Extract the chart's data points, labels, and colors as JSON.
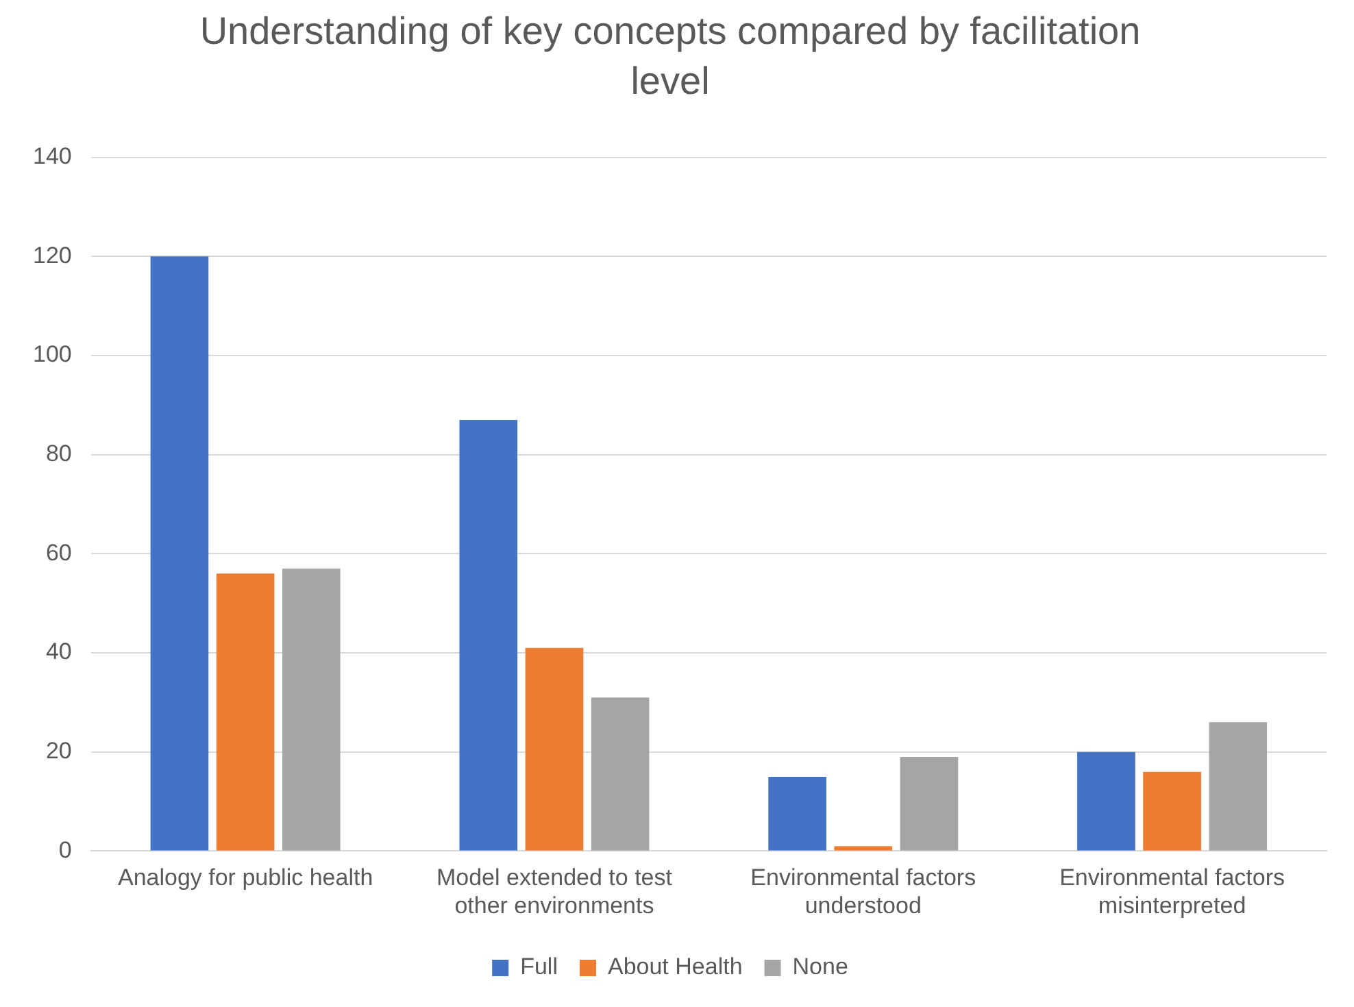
{
  "chart_data": {
    "type": "bar",
    "title": "Understanding of key concepts compared by facilitation level",
    "categories": [
      "Analogy for public health",
      "Model extended to test other environments",
      "Environmental factors understood",
      "Environmental factors misinterpreted"
    ],
    "series": [
      {
        "name": "Full",
        "color": "#4472c4",
        "values": [
          120,
          87,
          15,
          20
        ]
      },
      {
        "name": "About Health",
        "color": "#ed7d31",
        "values": [
          56,
          41,
          1,
          16
        ]
      },
      {
        "name": "None",
        "color": "#a5a5a5",
        "values": [
          57,
          31,
          19,
          26
        ]
      }
    ],
    "ylim": [
      0,
      140
    ],
    "yticks": [
      0,
      20,
      40,
      60,
      80,
      100,
      120,
      140
    ],
    "grid": "y",
    "legend": "bottom"
  }
}
